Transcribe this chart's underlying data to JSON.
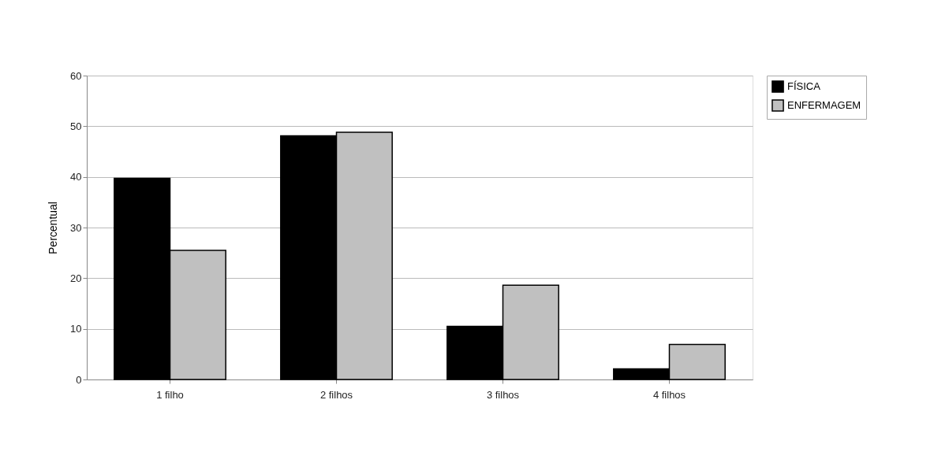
{
  "chart_data": {
    "type": "bar",
    "ylabel": "Percentual",
    "categories": [
      "1 filho",
      "2 filhos",
      "3 filhos",
      "4 filhos"
    ],
    "series": [
      {
        "name": "FÍSICA",
        "color": "#000000",
        "values": [
          39.7,
          48.1,
          10.5,
          2.1
        ]
      },
      {
        "name": "ENFERMAGEM",
        "color": "#c0c0c0",
        "values": [
          25.5,
          48.8,
          18.6,
          6.9
        ]
      }
    ],
    "ylim": [
      0,
      60
    ],
    "yticks": [
      0,
      10,
      20,
      30,
      40,
      50,
      60
    ],
    "grid": "y",
    "legend": "right"
  }
}
